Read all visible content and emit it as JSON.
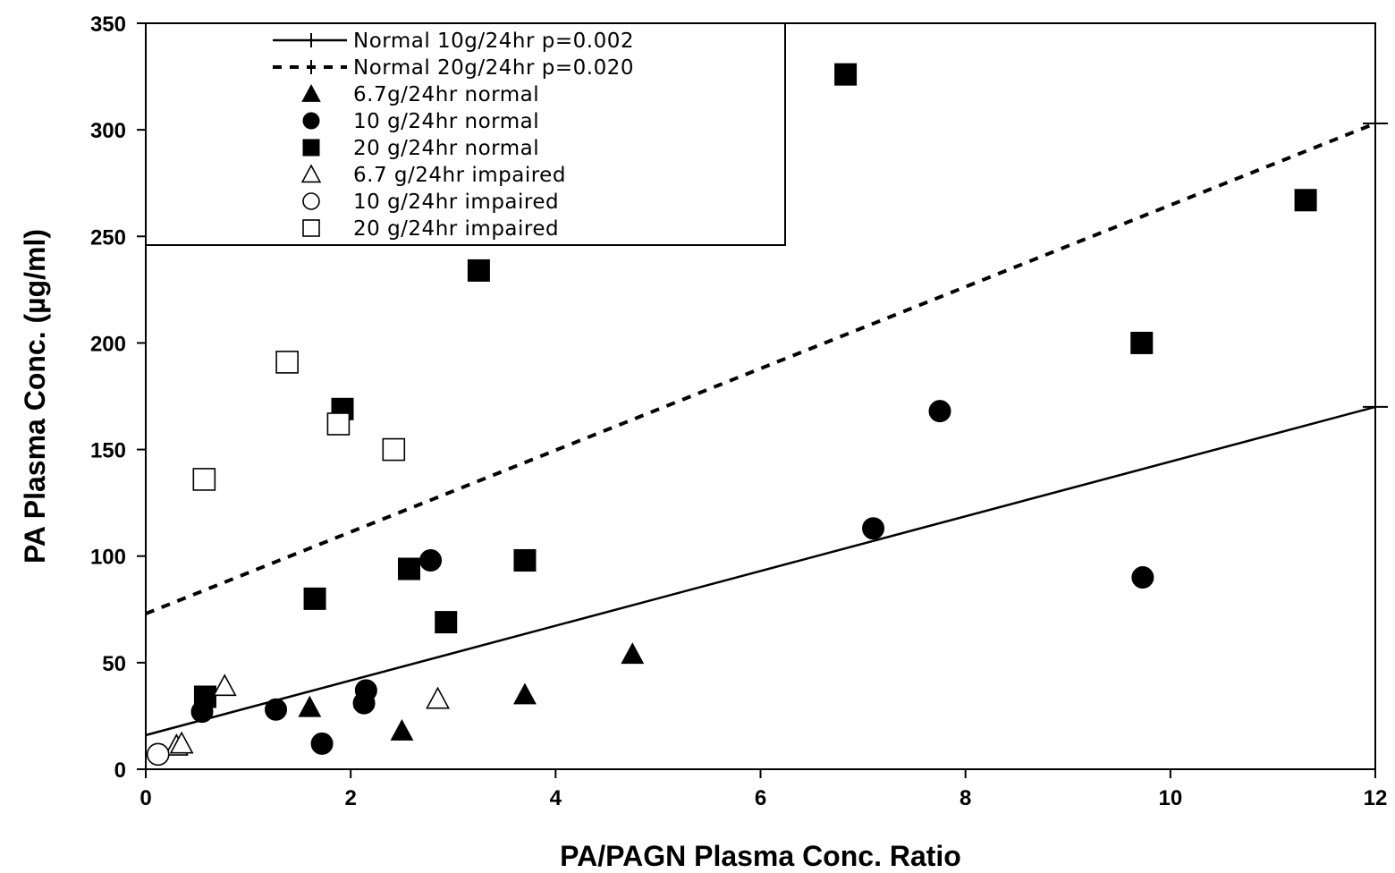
{
  "chart_data": {
    "type": "scatter",
    "xlabel": "PA/PAGN Plasma Conc. Ratio",
    "ylabel": "PA Plasma Conc. (µg/ml)",
    "xlim": [
      0,
      12
    ],
    "ylim": [
      0,
      350
    ],
    "xticks": [
      "0",
      "2",
      "4",
      "6",
      "8",
      "10",
      "12"
    ],
    "yticks": [
      "0",
      "50",
      "100",
      "150",
      "200",
      "250",
      "300",
      "350"
    ],
    "grid": false,
    "legend_position": "top-left",
    "lines": [
      {
        "name": "Normal 10g/24hr p=0.002",
        "style": "solid",
        "start": [
          0,
          16
        ],
        "end": [
          12,
          170
        ]
      },
      {
        "name": "Normal 20g/24hr p=0.020",
        "style": "dashed",
        "start": [
          0,
          73
        ],
        "end": [
          12,
          303
        ]
      }
    ],
    "series": [
      {
        "name": "6.7g/24hr normal",
        "marker": "triangle",
        "filled": true,
        "points": [
          [
            1.6,
            29
          ],
          [
            2.5,
            18
          ],
          [
            3.7,
            35
          ],
          [
            4.75,
            54
          ]
        ]
      },
      {
        "name": "10 g/24hr normal",
        "marker": "circle",
        "filled": true,
        "points": [
          [
            0.55,
            27
          ],
          [
            1.27,
            28
          ],
          [
            1.72,
            12
          ],
          [
            2.13,
            31
          ],
          [
            2.15,
            37
          ],
          [
            2.78,
            98
          ],
          [
            7.1,
            113
          ],
          [
            7.75,
            168
          ],
          [
            9.73,
            90
          ]
        ]
      },
      {
        "name": "20 g/24hr normal",
        "marker": "square",
        "filled": true,
        "points": [
          [
            0.58,
            34
          ],
          [
            1.65,
            80
          ],
          [
            1.92,
            169
          ],
          [
            2.57,
            94
          ],
          [
            2.93,
            69
          ],
          [
            3.25,
            234
          ],
          [
            3.7,
            98
          ],
          [
            6.83,
            326
          ],
          [
            9.72,
            200
          ],
          [
            11.32,
            267
          ]
        ]
      },
      {
        "name": "6.7 g/24hr impaired",
        "marker": "triangle",
        "filled": false,
        "points": [
          [
            0.3,
            11
          ],
          [
            0.35,
            12
          ],
          [
            0.77,
            39
          ],
          [
            2.85,
            33
          ]
        ]
      },
      {
        "name": "10 g/24hr impaired",
        "marker": "circle",
        "filled": false,
        "points": [
          [
            0.12,
            7
          ]
        ]
      },
      {
        "name": "20 g/24hr impaired",
        "marker": "square",
        "filled": false,
        "points": [
          [
            0.57,
            136
          ],
          [
            1.38,
            191
          ],
          [
            1.88,
            162
          ],
          [
            2.42,
            150
          ]
        ]
      }
    ]
  }
}
